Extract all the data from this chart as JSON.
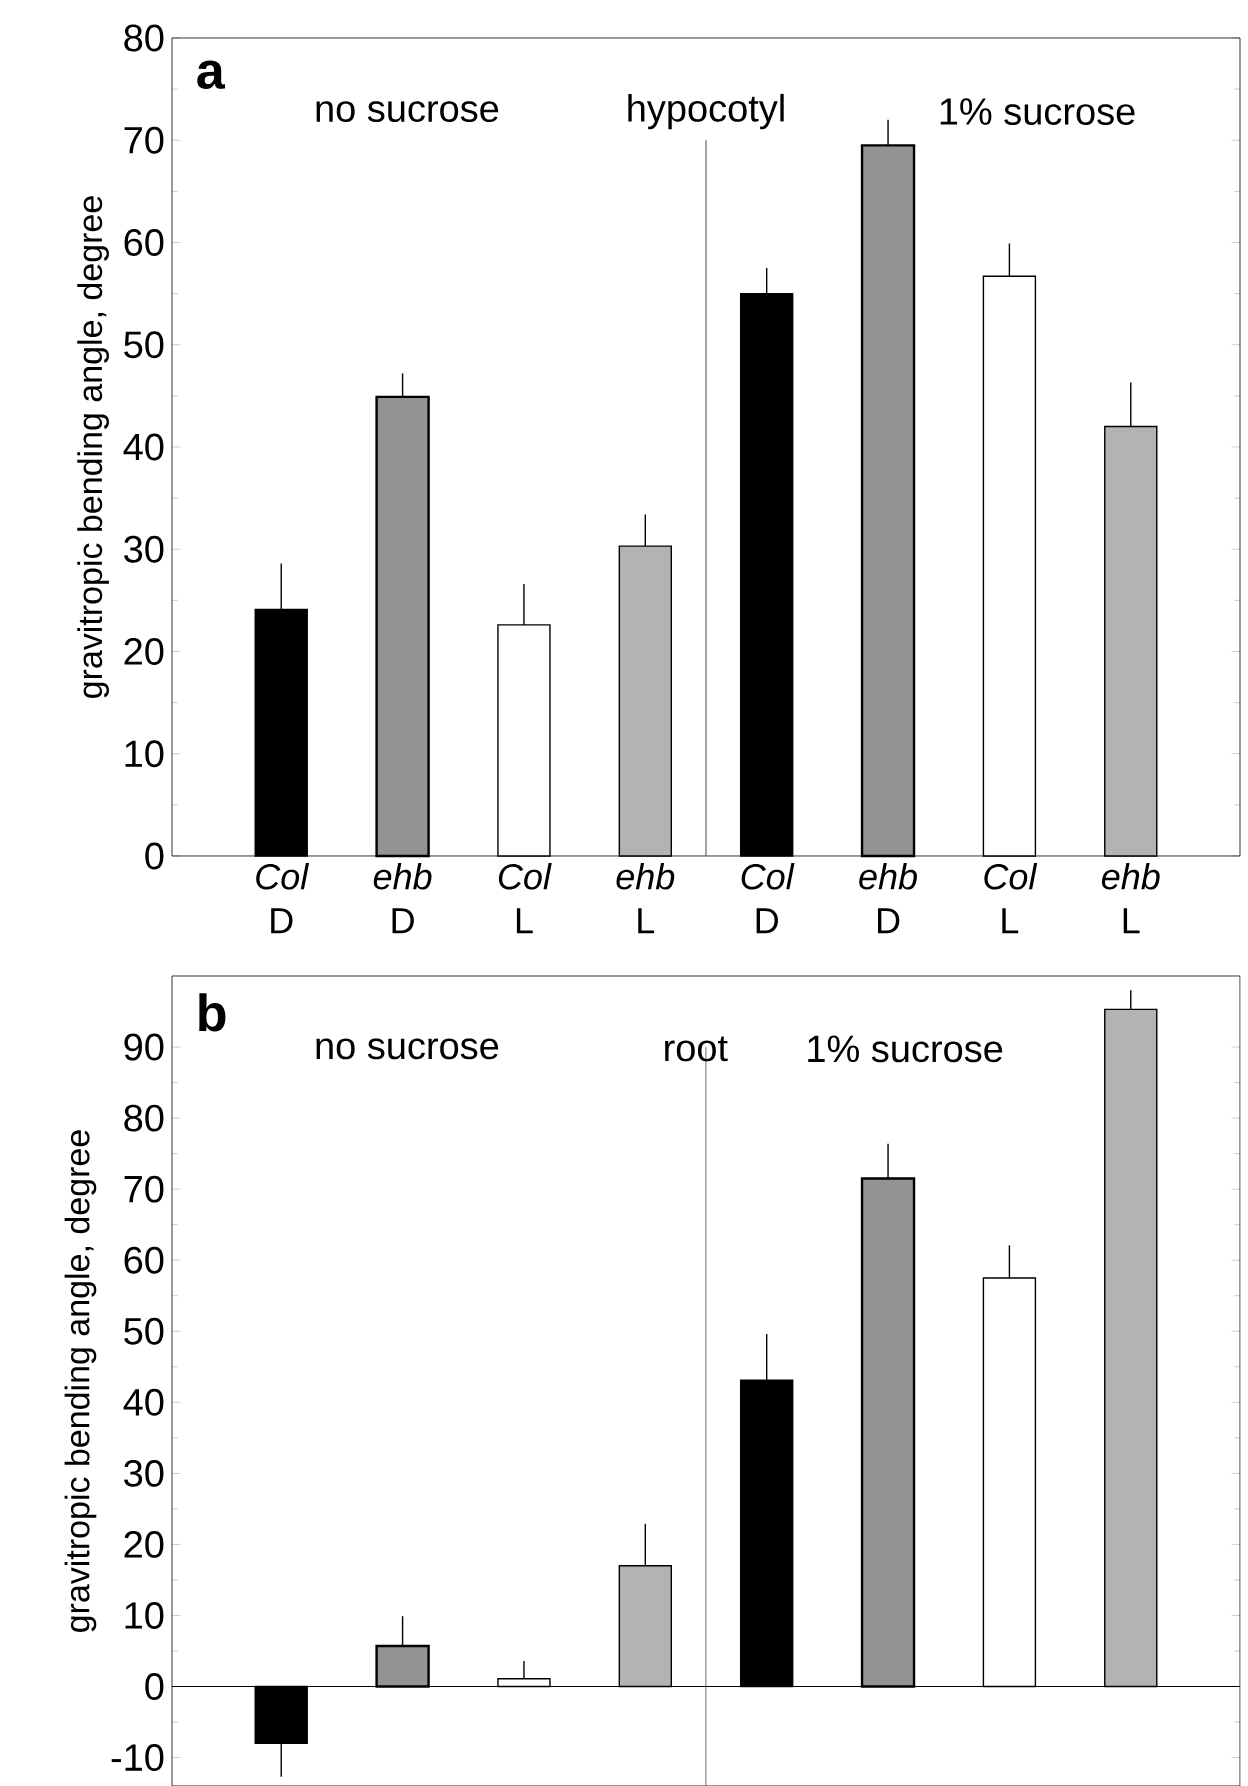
{
  "chart_data": [
    {
      "type": "bar",
      "ylabel": "gravitropic bending angle, degree",
      "categories": [
        "*Col* D",
        "*ehb* D",
        "*Col* L",
        "*ehb* L",
        "*Col* D",
        "*ehb* D",
        "*Col* L",
        "*ehb* L"
      ],
      "values": [
        24.1,
        44.9,
        22.6,
        30.3,
        55.0,
        69.5,
        56.7,
        42.0
      ],
      "errors": [
        [
          24.1,
          28.6
        ],
        [
          44.9,
          47.2
        ],
        [
          22.6,
          26.6
        ],
        [
          30.3,
          33.4
        ],
        [
          55.0,
          57.5
        ],
        [
          69.5,
          72.0
        ],
        [
          56.7,
          59.9
        ],
        [
          42.0,
          46.3
        ]
      ],
      "colors": [
        "#000000",
        "#939393",
        "#ffffff",
        "#b3b3b3",
        "#000000",
        "#939393",
        "#ffffff",
        "#b3b3b3"
      ],
      "ylim": [
        0,
        80
      ],
      "yticks": [
        0,
        10,
        20,
        30,
        40,
        50,
        60,
        70,
        80
      ],
      "annotations": [
        "**a**",
        "no sucrose",
        "hypocotyl",
        "1% sucrose"
      ]
    },
    {
      "type": "bar",
      "ylabel": "gravitropic bending angle, degree",
      "categories": [
        null,
        null,
        null,
        null,
        null,
        null,
        null,
        null
      ],
      "values": [
        -8.0,
        5.7,
        1.1,
        17.0,
        43.1,
        71.5,
        57.5,
        95.3
      ],
      "errors": [
        [
          -12.7,
          -8.0
        ],
        [
          5.7,
          9.9
        ],
        [
          1.1,
          3.6
        ],
        [
          17.0,
          22.9
        ],
        [
          43.1,
          49.6
        ],
        [
          71.5,
          76.4
        ],
        [
          57.5,
          62.1
        ],
        [
          95.3,
          98.0
        ]
      ],
      "colors": [
        "#000000",
        "#939393",
        "#ffffff",
        "#b3b3b3",
        "#000000",
        "#939393",
        "#ffffff",
        "#b3b3b3"
      ],
      "ylim": [
        -14,
        100
      ],
      "yticks": [
        -10,
        0,
        10,
        20,
        30,
        40,
        50,
        60,
        70,
        80,
        90
      ],
      "tick_labels": "y",
      "annotations": [
        "**b**",
        "no sucrose",
        "root",
        "1% sucrose"
      ]
    }
  ]
}
